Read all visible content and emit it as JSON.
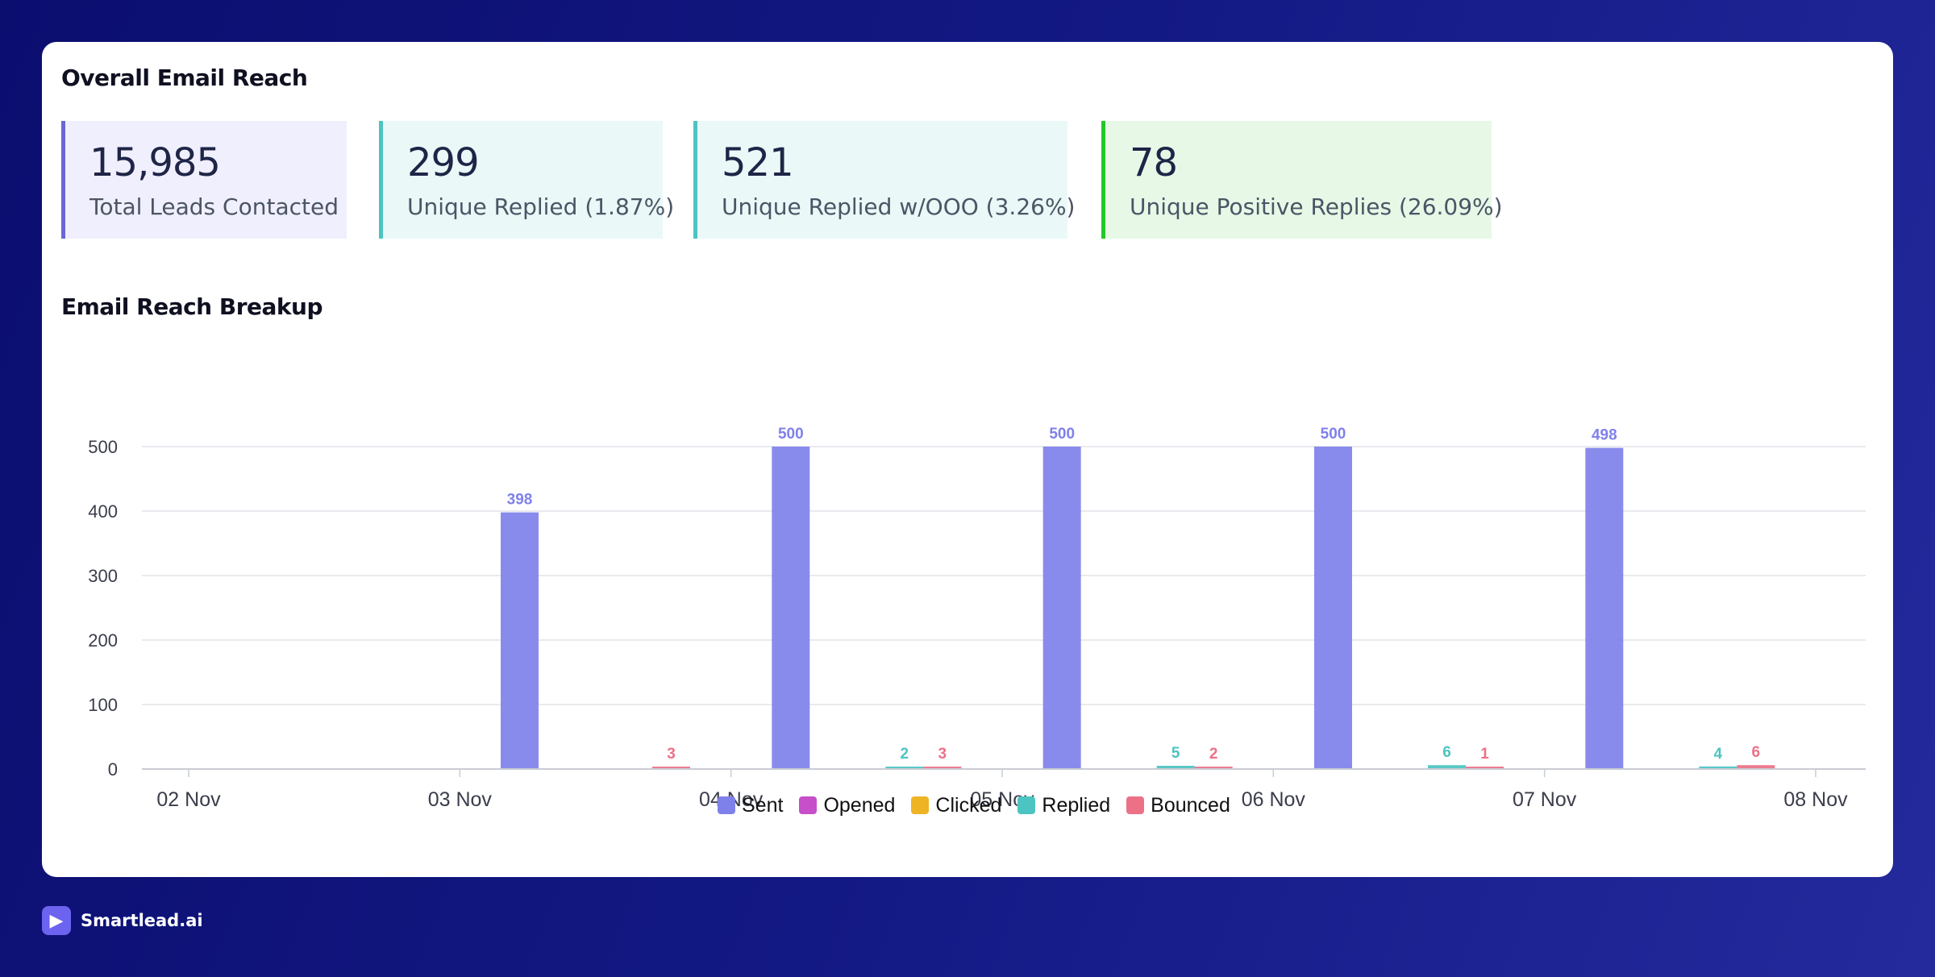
{
  "overview": {
    "title": "Overall Email Reach",
    "stats": [
      {
        "value": "15,985",
        "label": "Total Leads Contacted",
        "bg": "#f0effd",
        "border": "#6a67d6"
      },
      {
        "value": "299",
        "label": "Unique Replied (1.87%)",
        "bg": "#eaf8f8",
        "border": "#4cc4c2"
      },
      {
        "value": "521",
        "label": "Unique Replied w/OOO (3.26%)",
        "bg": "#eaf8f8",
        "border": "#4cc4c2"
      },
      {
        "value": "78",
        "label": "Unique Positive Replies (26.09%)",
        "bg": "#e7f8e7",
        "border": "#22c82a"
      }
    ]
  },
  "breakup": {
    "title": "Email Reach Breakup"
  },
  "chart_data": {
    "type": "bar",
    "categories": [
      "02 Nov",
      "03 Nov",
      "04 Nov",
      "05 Nov",
      "06 Nov",
      "07 Nov",
      "08 Nov"
    ],
    "series": [
      {
        "name": "Sent",
        "color": "#7f81ea",
        "values": [
          0,
          398,
          500,
          500,
          500,
          498,
          0
        ]
      },
      {
        "name": "Opened",
        "color": "#c74fc9",
        "values": [
          0,
          0,
          0,
          0,
          0,
          0,
          0
        ]
      },
      {
        "name": "Clicked",
        "color": "#eeb424",
        "values": [
          0,
          0,
          0,
          0,
          0,
          0,
          0
        ]
      },
      {
        "name": "Replied",
        "color": "#4cc4c2",
        "values": [
          0,
          0,
          2,
          5,
          6,
          4,
          0
        ]
      },
      {
        "name": "Bounced",
        "color": "#ec7187",
        "values": [
          0,
          3,
          3,
          2,
          1,
          6,
          0
        ]
      }
    ],
    "ylim": [
      0,
      500
    ],
    "yticks": [
      0,
      100,
      200,
      300,
      400,
      500
    ],
    "grid": true,
    "legend_position": "bottom-center"
  },
  "brand": {
    "name": "Smartlead.ai",
    "logo_icon": "megaphone-icon"
  }
}
